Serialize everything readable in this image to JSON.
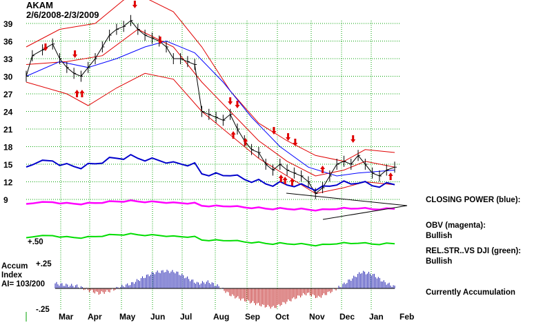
{
  "chart_data": {
    "type": "line",
    "title": "AKAM",
    "subtitle": "2/6/2008-2/3/2009",
    "price_axis": {
      "ticks": [
        9,
        12,
        15,
        18,
        21,
        24,
        27,
        30,
        33,
        36,
        39
      ],
      "ylim": [
        7,
        43
      ]
    },
    "x_axis": {
      "labels": [
        "Mar",
        "Apr",
        "May",
        "Jun",
        "Jul",
        "Aug",
        "Sep",
        "Oct",
        "Nov",
        "Dec",
        "Jan",
        "Feb"
      ]
    },
    "price_close": [
      {
        "x": "2008-02-06",
        "y": 30
      },
      {
        "x": "2008-02-12",
        "y": 33.5
      },
      {
        "x": "2008-02-22",
        "y": 34.5
      },
      {
        "x": "2008-03-03",
        "y": 35.5
      },
      {
        "x": "2008-03-10",
        "y": 33
      },
      {
        "x": "2008-03-17",
        "y": 31.5
      },
      {
        "x": "2008-03-24",
        "y": 30.5
      },
      {
        "x": "2008-03-31",
        "y": 30
      },
      {
        "x": "2008-04-07",
        "y": 31.5
      },
      {
        "x": "2008-04-14",
        "y": 33
      },
      {
        "x": "2008-04-21",
        "y": 35
      },
      {
        "x": "2008-04-28",
        "y": 37
      },
      {
        "x": "2008-05-05",
        "y": 38
      },
      {
        "x": "2008-05-12",
        "y": 38.5
      },
      {
        "x": "2008-05-19",
        "y": 39.5
      },
      {
        "x": "2008-05-26",
        "y": 38
      },
      {
        "x": "2008-06-02",
        "y": 37
      },
      {
        "x": "2008-06-09",
        "y": 36.5
      },
      {
        "x": "2008-06-16",
        "y": 36
      },
      {
        "x": "2008-06-23",
        "y": 35
      },
      {
        "x": "2008-06-30",
        "y": 33
      },
      {
        "x": "2008-07-07",
        "y": 33
      },
      {
        "x": "2008-07-14",
        "y": 32.5
      },
      {
        "x": "2008-07-21",
        "y": 32
      },
      {
        "x": "2008-07-28",
        "y": 24
      },
      {
        "x": "2008-08-04",
        "y": 23.5
      },
      {
        "x": "2008-08-11",
        "y": 23
      },
      {
        "x": "2008-08-18",
        "y": 22.5
      },
      {
        "x": "2008-08-25",
        "y": 23.5
      },
      {
        "x": "2008-09-01",
        "y": 21
      },
      {
        "x": "2008-09-08",
        "y": 19
      },
      {
        "x": "2008-09-15",
        "y": 17.5
      },
      {
        "x": "2008-09-22",
        "y": 17
      },
      {
        "x": "2008-09-29",
        "y": 15
      },
      {
        "x": "2008-10-06",
        "y": 14
      },
      {
        "x": "2008-10-13",
        "y": 15
      },
      {
        "x": "2008-10-20",
        "y": 14
      },
      {
        "x": "2008-10-27",
        "y": 13.5
      },
      {
        "x": "2008-11-03",
        "y": 13
      },
      {
        "x": "2008-11-10",
        "y": 12
      },
      {
        "x": "2008-11-17",
        "y": 10
      },
      {
        "x": "2008-11-24",
        "y": 11
      },
      {
        "x": "2008-12-01",
        "y": 13
      },
      {
        "x": "2008-12-08",
        "y": 15
      },
      {
        "x": "2008-12-15",
        "y": 15.5
      },
      {
        "x": "2008-12-22",
        "y": 15
      },
      {
        "x": "2008-12-29",
        "y": 16.5
      },
      {
        "x": "2009-01-05",
        "y": 15
      },
      {
        "x": "2009-01-12",
        "y": 13.5
      },
      {
        "x": "2009-01-19",
        "y": 13
      },
      {
        "x": "2009-01-26",
        "y": 14
      },
      {
        "x": "2009-02-03",
        "y": 14.5
      }
    ],
    "ma_blue": [
      {
        "x": "2008-02-06",
        "y": 30
      },
      {
        "x": "2008-03-10",
        "y": 32.5
      },
      {
        "x": "2008-04-07",
        "y": 31.5
      },
      {
        "x": "2008-05-05",
        "y": 33
      },
      {
        "x": "2008-06-02",
        "y": 35
      },
      {
        "x": "2008-06-23",
        "y": 36
      },
      {
        "x": "2008-07-21",
        "y": 34
      },
      {
        "x": "2008-08-18",
        "y": 29
      },
      {
        "x": "2008-09-15",
        "y": 23
      },
      {
        "x": "2008-10-13",
        "y": 18
      },
      {
        "x": "2008-11-10",
        "y": 14.5
      },
      {
        "x": "2008-12-08",
        "y": 13
      },
      {
        "x": "2008-12-29",
        "y": 13.5
      },
      {
        "x": "2009-02-03",
        "y": 14
      }
    ],
    "band_upper": [
      {
        "x": "2008-02-06",
        "y": 35
      },
      {
        "x": "2008-03-10",
        "y": 38
      },
      {
        "x": "2008-04-14",
        "y": 39
      },
      {
        "x": "2008-05-12",
        "y": 43
      },
      {
        "x": "2008-05-26",
        "y": 44
      },
      {
        "x": "2008-06-30",
        "y": 41
      },
      {
        "x": "2008-07-28",
        "y": 35
      },
      {
        "x": "2008-08-25",
        "y": 27.5
      },
      {
        "x": "2008-09-22",
        "y": 22
      },
      {
        "x": "2008-10-20",
        "y": 19
      },
      {
        "x": "2008-11-17",
        "y": 16.5
      },
      {
        "x": "2008-12-15",
        "y": 15.5
      },
      {
        "x": "2009-01-05",
        "y": 17.5
      },
      {
        "x": "2009-02-03",
        "y": 17
      }
    ],
    "band_mid": [
      {
        "x": "2008-02-06",
        "y": 32
      },
      {
        "x": "2008-03-17",
        "y": 32.5
      },
      {
        "x": "2008-04-21",
        "y": 33.5
      },
      {
        "x": "2008-05-26",
        "y": 38
      },
      {
        "x": "2008-06-30",
        "y": 35
      },
      {
        "x": "2008-07-28",
        "y": 29
      },
      {
        "x": "2008-08-25",
        "y": 24
      },
      {
        "x": "2008-09-22",
        "y": 19
      },
      {
        "x": "2008-10-20",
        "y": 15.5
      },
      {
        "x": "2008-11-17",
        "y": 13
      },
      {
        "x": "2008-12-15",
        "y": 14
      },
      {
        "x": "2009-01-05",
        "y": 15.5
      },
      {
        "x": "2009-02-03",
        "y": 14.5
      }
    ],
    "band_lower": [
      {
        "x": "2008-02-06",
        "y": 29
      },
      {
        "x": "2008-03-17",
        "y": 27
      },
      {
        "x": "2008-04-07",
        "y": 25
      },
      {
        "x": "2008-05-05",
        "y": 28
      },
      {
        "x": "2008-06-02",
        "y": 30.5
      },
      {
        "x": "2008-06-30",
        "y": 29.5
      },
      {
        "x": "2008-07-28",
        "y": 24
      },
      {
        "x": "2008-08-25",
        "y": 20
      },
      {
        "x": "2008-09-22",
        "y": 16
      },
      {
        "x": "2008-10-20",
        "y": 13
      },
      {
        "x": "2008-11-17",
        "y": 10
      },
      {
        "x": "2008-12-15",
        "y": 11
      },
      {
        "x": "2009-01-05",
        "y": 12
      },
      {
        "x": "2009-02-03",
        "y": 11.5
      }
    ],
    "sell_signals": [
      "2008-02-25",
      "2008-03-25",
      "2008-05-23",
      "2008-06-17",
      "2008-08-25",
      "2008-09-01",
      "2008-10-07",
      "2008-10-21",
      "2008-10-28",
      "2008-12-24"
    ],
    "buy_signals": [
      "2008-03-27",
      "2008-04-01",
      "2008-08-28",
      "2008-09-09",
      "2008-10-14",
      "2008-10-18",
      "2008-10-25",
      "2008-11-24",
      "2009-01-30"
    ],
    "legend": {
      "closing_power": "CLOSING POWER (blue):",
      "obv": "OBV (magenta):",
      "obv_status": "Bullish",
      "relstr": "REL.STR..VS DJI (green):",
      "relstr_status": "Bullish",
      "accumulation": "Currently Accumulation"
    },
    "accum_index": {
      "title_line1": "Accum",
      "title_line2": "Index",
      "ai_value": "AI= 103/200",
      "tick_top": "+.25",
      "tick_bottom": "-.25",
      "tick_relstr": "+.50",
      "values": [
        0.06,
        0.04,
        0.03,
        -0.02,
        -0.06,
        -0.03,
        0.02,
        0.06,
        0.13,
        0.19,
        0.21,
        0.2,
        0.13,
        0.06,
        0.08,
        0.02,
        -0.08,
        -0.13,
        -0.17,
        -0.21,
        -0.23,
        -0.17,
        -0.11,
        -0.06,
        -0.11,
        -0.05,
        0.02,
        0.11,
        0.2,
        0.17,
        0.08,
        0.02
      ]
    },
    "colors": {
      "grid": "#00a000",
      "price": "#000000",
      "band": "#e00000",
      "ma_blue": "#0000ff",
      "closing_power": "#0000cc",
      "obv": "#ff00ff",
      "relstr": "#00dd00",
      "accum_pos": "#2020b0",
      "accum_neg": "#c02020",
      "arrow": "#e00000"
    }
  }
}
